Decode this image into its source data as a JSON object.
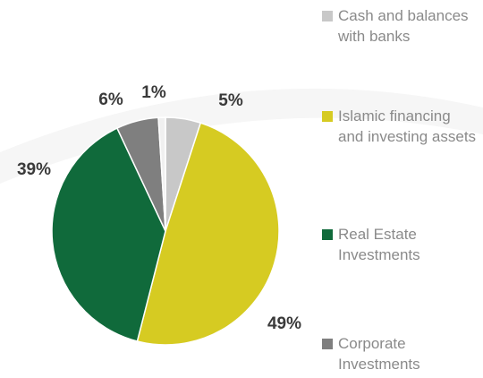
{
  "chart_data": {
    "type": "pie",
    "categories": [
      "Cash and balances with banks",
      "Islamic financing and investing assets",
      "Real Estate Investments",
      "Corporate Investments",
      null
    ],
    "values": [
      5,
      49,
      39,
      6,
      1
    ],
    "value_labels": [
      "5%",
      "49%",
      "39%",
      "6%",
      "1%"
    ],
    "colors": [
      "#c8c8c8",
      "#d6cb22",
      "#106a3b",
      "#7f7f7f",
      "#f0f0f0"
    ]
  }
}
